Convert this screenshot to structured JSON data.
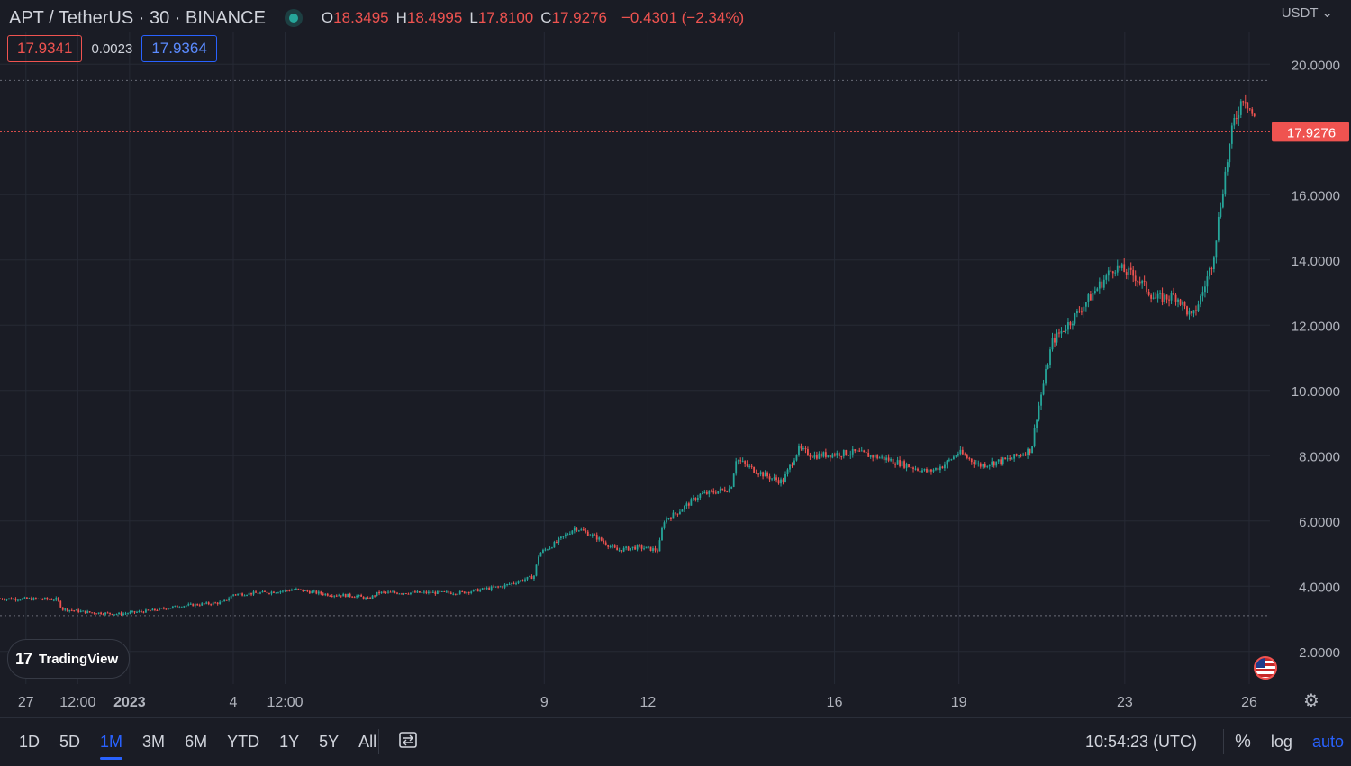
{
  "header": {
    "symbol_title": "APT / TetherUS · 30 · BINANCE",
    "open_key": "O",
    "open": "18.3495",
    "high_key": "H",
    "high": "18.4995",
    "low_key": "L",
    "low": "17.8100",
    "close_key": "C",
    "close": "17.9276",
    "change": "−0.4301 (−2.34%)"
  },
  "quote": {
    "bid": "17.9341",
    "spread": "0.0023",
    "ask": "17.9364"
  },
  "currency": "USDT",
  "currency_caret": "⌄",
  "last_price_label": "17.9276",
  "logo_text": "TradingView",
  "logo_mark": "17",
  "toolbar": {
    "ranges": [
      "1D",
      "5D",
      "1M",
      "3M",
      "6M",
      "YTD",
      "1Y",
      "5Y",
      "All"
    ],
    "active_range": "1M",
    "clock": "10:54:23 (UTC)",
    "percent": "%",
    "log": "log",
    "auto": "auto"
  },
  "icons": {
    "status": "status-dot-icon",
    "compare": "compare-icon",
    "settings": "gear-icon",
    "flag": "flag-icon"
  },
  "colors": {
    "up": "#26a69a",
    "down": "#ef5350",
    "accent": "#2962ff",
    "bg": "#1a1c25",
    "grid": "#262a35"
  },
  "chart_data": {
    "type": "candlestick",
    "y_ticks": [
      "20.0000",
      "16.0000",
      "14.0000",
      "12.0000",
      "10.0000",
      "8.0000",
      "6.0000",
      "4.0000",
      "2.0000"
    ],
    "y_tick_values": [
      20,
      16,
      14,
      12,
      10,
      8,
      6,
      4,
      2
    ],
    "x_ticks": [
      "27",
      "12:00",
      "2023",
      "4",
      "12:00",
      "9",
      "12",
      "16",
      "19",
      "23",
      "26"
    ],
    "x_tick_positions": [
      0.0,
      0.5,
      1.0,
      2.0,
      2.5,
      5.0,
      6.0,
      7.8,
      9.0,
      10.6,
      11.8
    ],
    "x_range": [
      -0.25,
      12.0
    ],
    "ylim": [
      1.0,
      21.0
    ],
    "last_price": 17.9276,
    "high_line": 19.5,
    "low_line": 3.1,
    "close_path": [
      [
        -0.25,
        3.62
      ],
      [
        0.3,
        3.6
      ],
      [
        0.35,
        3.3
      ],
      [
        0.6,
        3.2
      ],
      [
        0.9,
        3.15
      ],
      [
        1.2,
        3.25
      ],
      [
        1.5,
        3.4
      ],
      [
        1.9,
        3.5
      ],
      [
        2.0,
        3.75
      ],
      [
        2.3,
        3.8
      ],
      [
        2.6,
        3.9
      ],
      [
        2.9,
        3.75
      ],
      [
        3.2,
        3.7
      ],
      [
        3.3,
        3.6
      ],
      [
        3.4,
        3.8
      ],
      [
        3.8,
        3.8
      ],
      [
        4.2,
        3.8
      ],
      [
        4.6,
        4.0
      ],
      [
        4.9,
        4.3
      ],
      [
        4.95,
        5.0
      ],
      [
        5.1,
        5.3
      ],
      [
        5.3,
        5.8
      ],
      [
        5.5,
        5.5
      ],
      [
        5.7,
        5.1
      ],
      [
        5.9,
        5.2
      ],
      [
        6.1,
        5.1
      ],
      [
        6.15,
        6.0
      ],
      [
        6.3,
        6.3
      ],
      [
        6.5,
        6.8
      ],
      [
        6.8,
        7.0
      ],
      [
        6.85,
        7.9
      ],
      [
        7.0,
        7.6
      ],
      [
        7.2,
        7.3
      ],
      [
        7.3,
        7.2
      ],
      [
        7.45,
        8.2
      ],
      [
        7.6,
        8.0
      ],
      [
        8.0,
        8.1
      ],
      [
        8.3,
        7.9
      ],
      [
        8.5,
        7.7
      ],
      [
        8.7,
        7.5
      ],
      [
        8.85,
        7.7
      ],
      [
        9.0,
        8.1
      ],
      [
        9.2,
        7.7
      ],
      [
        9.5,
        7.9
      ],
      [
        9.7,
        8.2
      ],
      [
        9.75,
        9.2
      ],
      [
        9.9,
        11.5
      ],
      [
        10.1,
        12.2
      ],
      [
        10.3,
        13.0
      ],
      [
        10.5,
        13.8
      ],
      [
        10.7,
        13.5
      ],
      [
        10.9,
        12.8
      ],
      [
        11.1,
        12.9
      ],
      [
        11.25,
        12.2
      ],
      [
        11.35,
        13.0
      ],
      [
        11.45,
        14.0
      ],
      [
        11.55,
        16.3
      ],
      [
        11.65,
        18.2
      ],
      [
        11.75,
        19.1
      ],
      [
        11.85,
        18.3
      ]
    ]
  }
}
